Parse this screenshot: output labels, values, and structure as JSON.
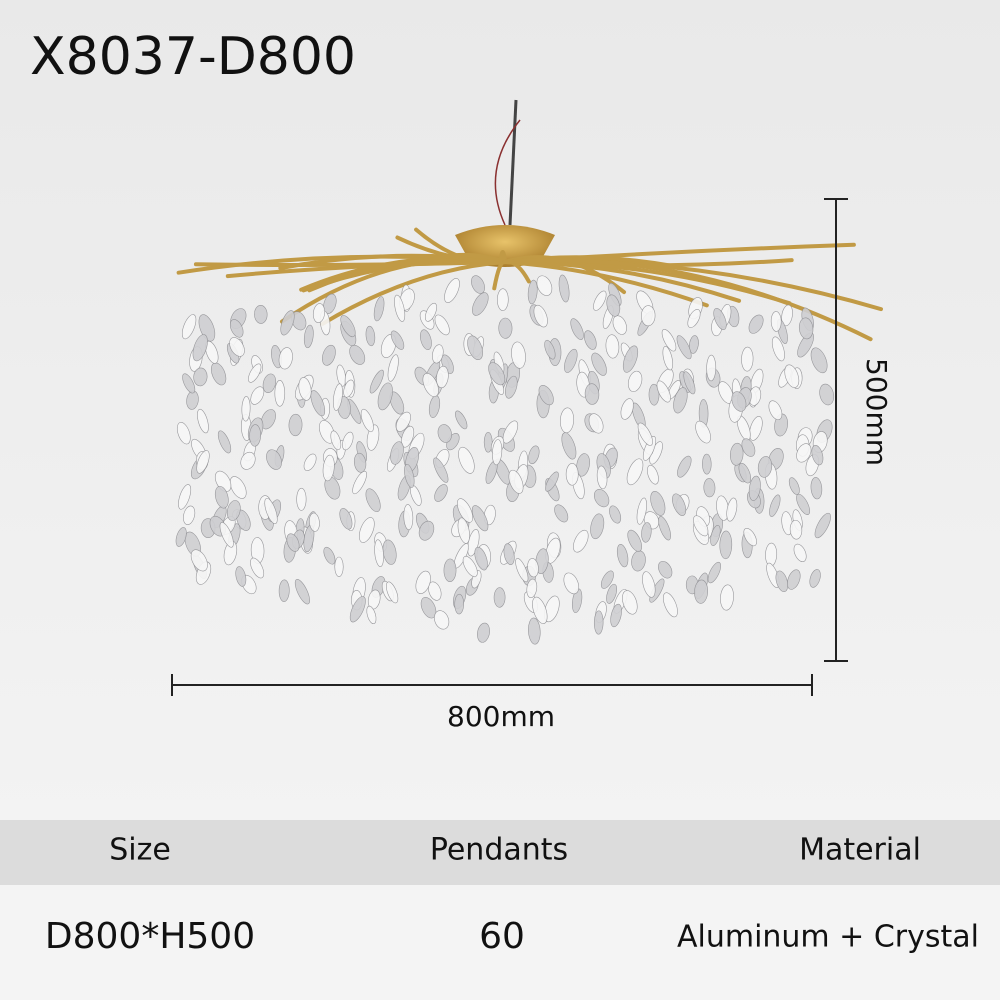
{
  "header": {
    "title": "X8037-D800"
  },
  "dimensions": {
    "height": "500mm",
    "width": "800mm"
  },
  "table": {
    "columns": [
      "Size",
      "Pendants",
      "Material"
    ],
    "rows": [
      [
        "D800*H500",
        60,
        "Aluminum + Crystal"
      ]
    ]
  }
}
